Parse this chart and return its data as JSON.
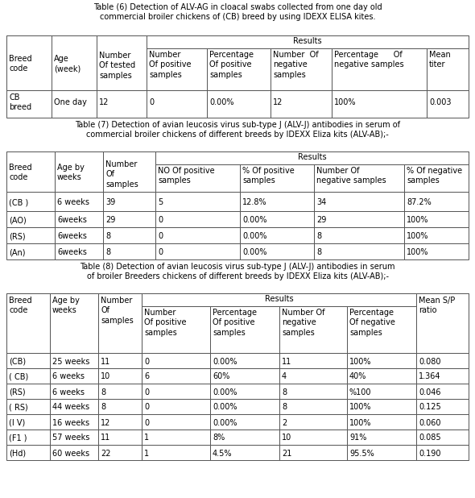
{
  "title6": "Table (6) Detection of ALV-AG in cloacal swabs collected from one day old\ncommercial broiler chickens of (CB) breed by using IDEXX ELISA kites.",
  "title7": "Table (7) Detection of avian leucosis virus sub-type J (ALV-J) antibodies in serum of\ncommercial broiler chickens of different breeds by IDEXX Eliza kits (ALV-AB);-",
  "title8": "Table (8) Detection of avian leucosis virus sub-type J (ALV-J) antibodies in serum\nof broiler Breeders chickens of different breeds by IDEXX Eliza kits (ALV-AB);-",
  "bg_color": "#ffffff"
}
